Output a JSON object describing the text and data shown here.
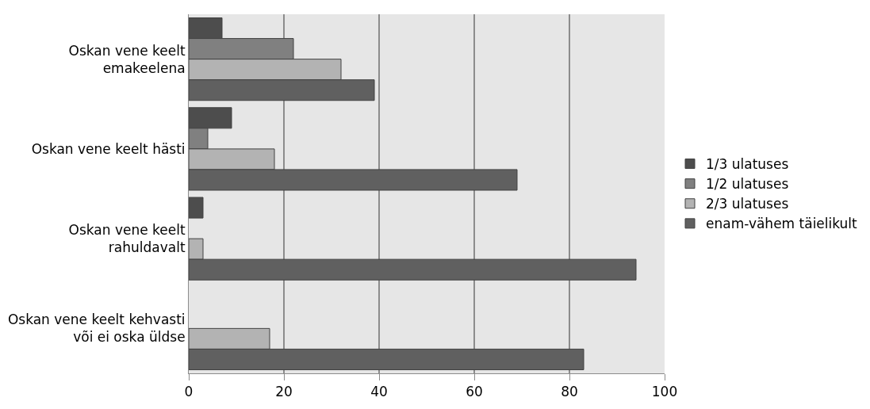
{
  "chart_data": {
    "type": "bar",
    "orientation": "horizontal",
    "categories": [
      "Oskan vene keelt\nemakeelena",
      "Oskan vene keelt hästi",
      "Oskan vene keelt\nrahuldavalt",
      "Oskan vene keelt kehvasti\nvõi ei oska üldse"
    ],
    "series": [
      {
        "name": "1/3 ulatuses",
        "color": "#4d4d4d",
        "values": [
          7,
          9,
          3,
          null
        ]
      },
      {
        "name": "1/2 ulatuses",
        "color": "#808080",
        "values": [
          22,
          4,
          null,
          null
        ]
      },
      {
        "name": "2/3 ulatuses",
        "color": "#b3b3b3",
        "values": [
          32,
          18,
          3,
          17
        ]
      },
      {
        "name": "enam-vähem täielikult",
        "color": "#606060",
        "values": [
          39,
          69,
          94,
          83
        ]
      }
    ],
    "xlim": [
      0,
      100
    ],
    "xticks": [
      0,
      20,
      40,
      60,
      80,
      100
    ],
    "grid": "x",
    "legend": "right"
  }
}
